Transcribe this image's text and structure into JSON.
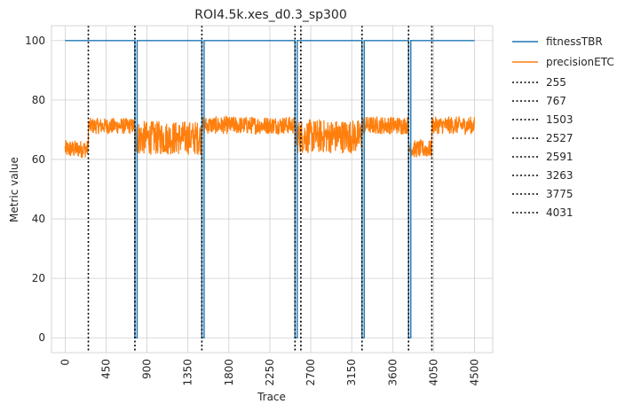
{
  "chart_data": {
    "type": "line",
    "title": "ROI4.5k.xes_d0.3_sp300",
    "xlabel": "Trace",
    "ylabel": "Metric value",
    "xlim": [
      -150,
      4700
    ],
    "ylim": [
      -5,
      105
    ],
    "xticks": [
      0,
      450,
      900,
      1350,
      1800,
      2250,
      2700,
      3150,
      3600,
      4050,
      4500
    ],
    "yticks": [
      0,
      20,
      40,
      60,
      80,
      100
    ],
    "grid": true,
    "legend_position": "outside-top-right",
    "x_range": [
      0,
      4500
    ],
    "series": [
      {
        "name": "fitnessTBR",
        "color": "#1f77b4",
        "base_value": 100,
        "dips_to_zero_at": [
          767,
          1503,
          2527,
          3263,
          3775
        ]
      },
      {
        "name": "precisionETC",
        "color": "#ff7f0e",
        "segments": [
          {
            "x": [
              0,
              255
            ],
            "low": 60.5,
            "high": 66.5
          },
          {
            "x": [
              255,
              767
            ],
            "low": 68.5,
            "high": 74
          },
          {
            "x": [
              767,
              1503
            ],
            "low": 61.5,
            "high": 73
          },
          {
            "x": [
              1503,
              2527
            ],
            "low": 68.5,
            "high": 74.5
          },
          {
            "x": [
              2527,
              3263
            ],
            "low": 62,
            "high": 73.5
          },
          {
            "x": [
              3263,
              3775
            ],
            "low": 68.5,
            "high": 74.5
          },
          {
            "x": [
              3775,
              4031
            ],
            "low": 60.5,
            "high": 66.5
          },
          {
            "x": [
              4031,
              4500
            ],
            "low": 68.5,
            "high": 74.5
          }
        ],
        "dips_to_zero_at": [
          767,
          1503,
          2527,
          3263,
          3775
        ]
      }
    ],
    "drift_lines": {
      "style": "dotted",
      "color": "#000000",
      "positions": [
        255,
        767,
        1503,
        2527,
        2591,
        3263,
        3775,
        4031
      ],
      "labels": [
        "255",
        "767",
        "1503",
        "2527",
        "2591",
        "3263",
        "3775",
        "4031"
      ]
    }
  }
}
